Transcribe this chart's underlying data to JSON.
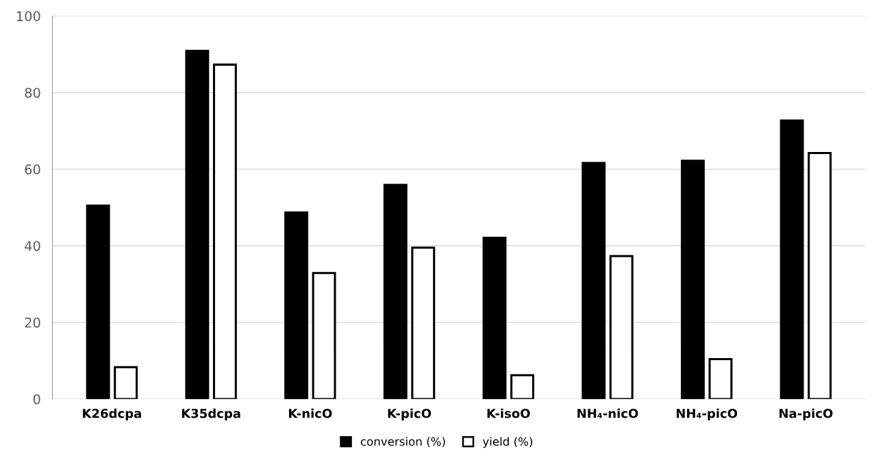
{
  "chart_data": {
    "type": "bar",
    "categories": [
      "K26dcpa",
      "K35dcpa",
      "K-nicO",
      "K-picO",
      "K-isoO",
      "NH₄-nicO",
      "NH₄-picO",
      "Na-picO"
    ],
    "series": [
      {
        "name": "conversion (%)",
        "color": "#000000",
        "values": [
          50.5,
          90.9,
          48.7,
          55.9,
          42.1,
          61.6,
          62.2,
          72.7
        ]
      },
      {
        "name": "yield (%)",
        "color": "#ffffff",
        "values": [
          8.3,
          87.3,
          32.9,
          39.5,
          6.2,
          37.3,
          10.4,
          64.2
        ]
      }
    ],
    "ylim": [
      0,
      100
    ],
    "yticks": [
      0,
      20,
      40,
      60,
      80,
      100
    ],
    "grid": "y",
    "legend": "bottom"
  }
}
